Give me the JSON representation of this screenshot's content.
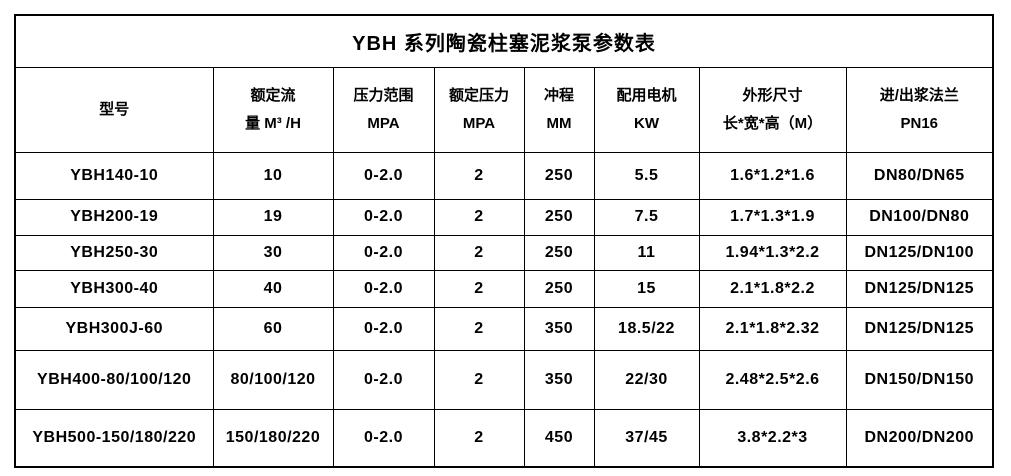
{
  "title": "YBH 系列陶瓷柱塞泥浆泵参数表",
  "colors": {
    "text": "#000000",
    "border": "#000000",
    "background": "#ffffff"
  },
  "table": {
    "headers": [
      {
        "name": "model",
        "lines": [
          "型号"
        ]
      },
      {
        "name": "rated-flow",
        "lines": [
          "额定流",
          "量 M³ /H"
        ]
      },
      {
        "name": "pressure-range",
        "lines": [
          "压力范围",
          "MPA"
        ]
      },
      {
        "name": "rated-pressure",
        "lines": [
          "额定压力",
          "MPA"
        ]
      },
      {
        "name": "stroke",
        "lines": [
          "冲程",
          "MM"
        ]
      },
      {
        "name": "matched-motor",
        "lines": [
          "配用电机",
          "KW"
        ]
      },
      {
        "name": "overall-size",
        "lines": [
          "外形尺寸",
          "长*宽*高（M）"
        ]
      },
      {
        "name": "inlet-outlet-flange",
        "lines": [
          "进/出浆法兰",
          "PN16"
        ]
      }
    ],
    "rows": [
      [
        "YBH140-10",
        "10",
        "0-2.0",
        "2",
        "250",
        "5.5",
        "1.6*1.2*1.6",
        "DN80/DN65"
      ],
      [
        "YBH200-19",
        "19",
        "0-2.0",
        "2",
        "250",
        "7.5",
        "1.7*1.3*1.9",
        "DN100/DN80"
      ],
      [
        "YBH250-30",
        "30",
        "0-2.0",
        "2",
        "250",
        "11",
        "1.94*1.3*2.2",
        "DN125/DN100"
      ],
      [
        "YBH300-40",
        "40",
        "0-2.0",
        "2",
        "250",
        "15",
        "2.1*1.8*2.2",
        "DN125/DN125"
      ],
      [
        "YBH300J-60",
        "60",
        "0-2.0",
        "2",
        "350",
        "18.5/22",
        "2.1*1.8*2.32",
        "DN125/DN125"
      ],
      [
        "YBH400-80/100/120",
        "80/100/120",
        "0-2.0",
        "2",
        "350",
        "22/30",
        "2.48*2.5*2.6",
        "DN150/DN150"
      ],
      [
        "YBH500-150/180/220",
        "150/180/220",
        "0-2.0",
        "2",
        "450",
        "37/45",
        "3.8*2.2*3",
        "DN200/DN200"
      ]
    ]
  }
}
